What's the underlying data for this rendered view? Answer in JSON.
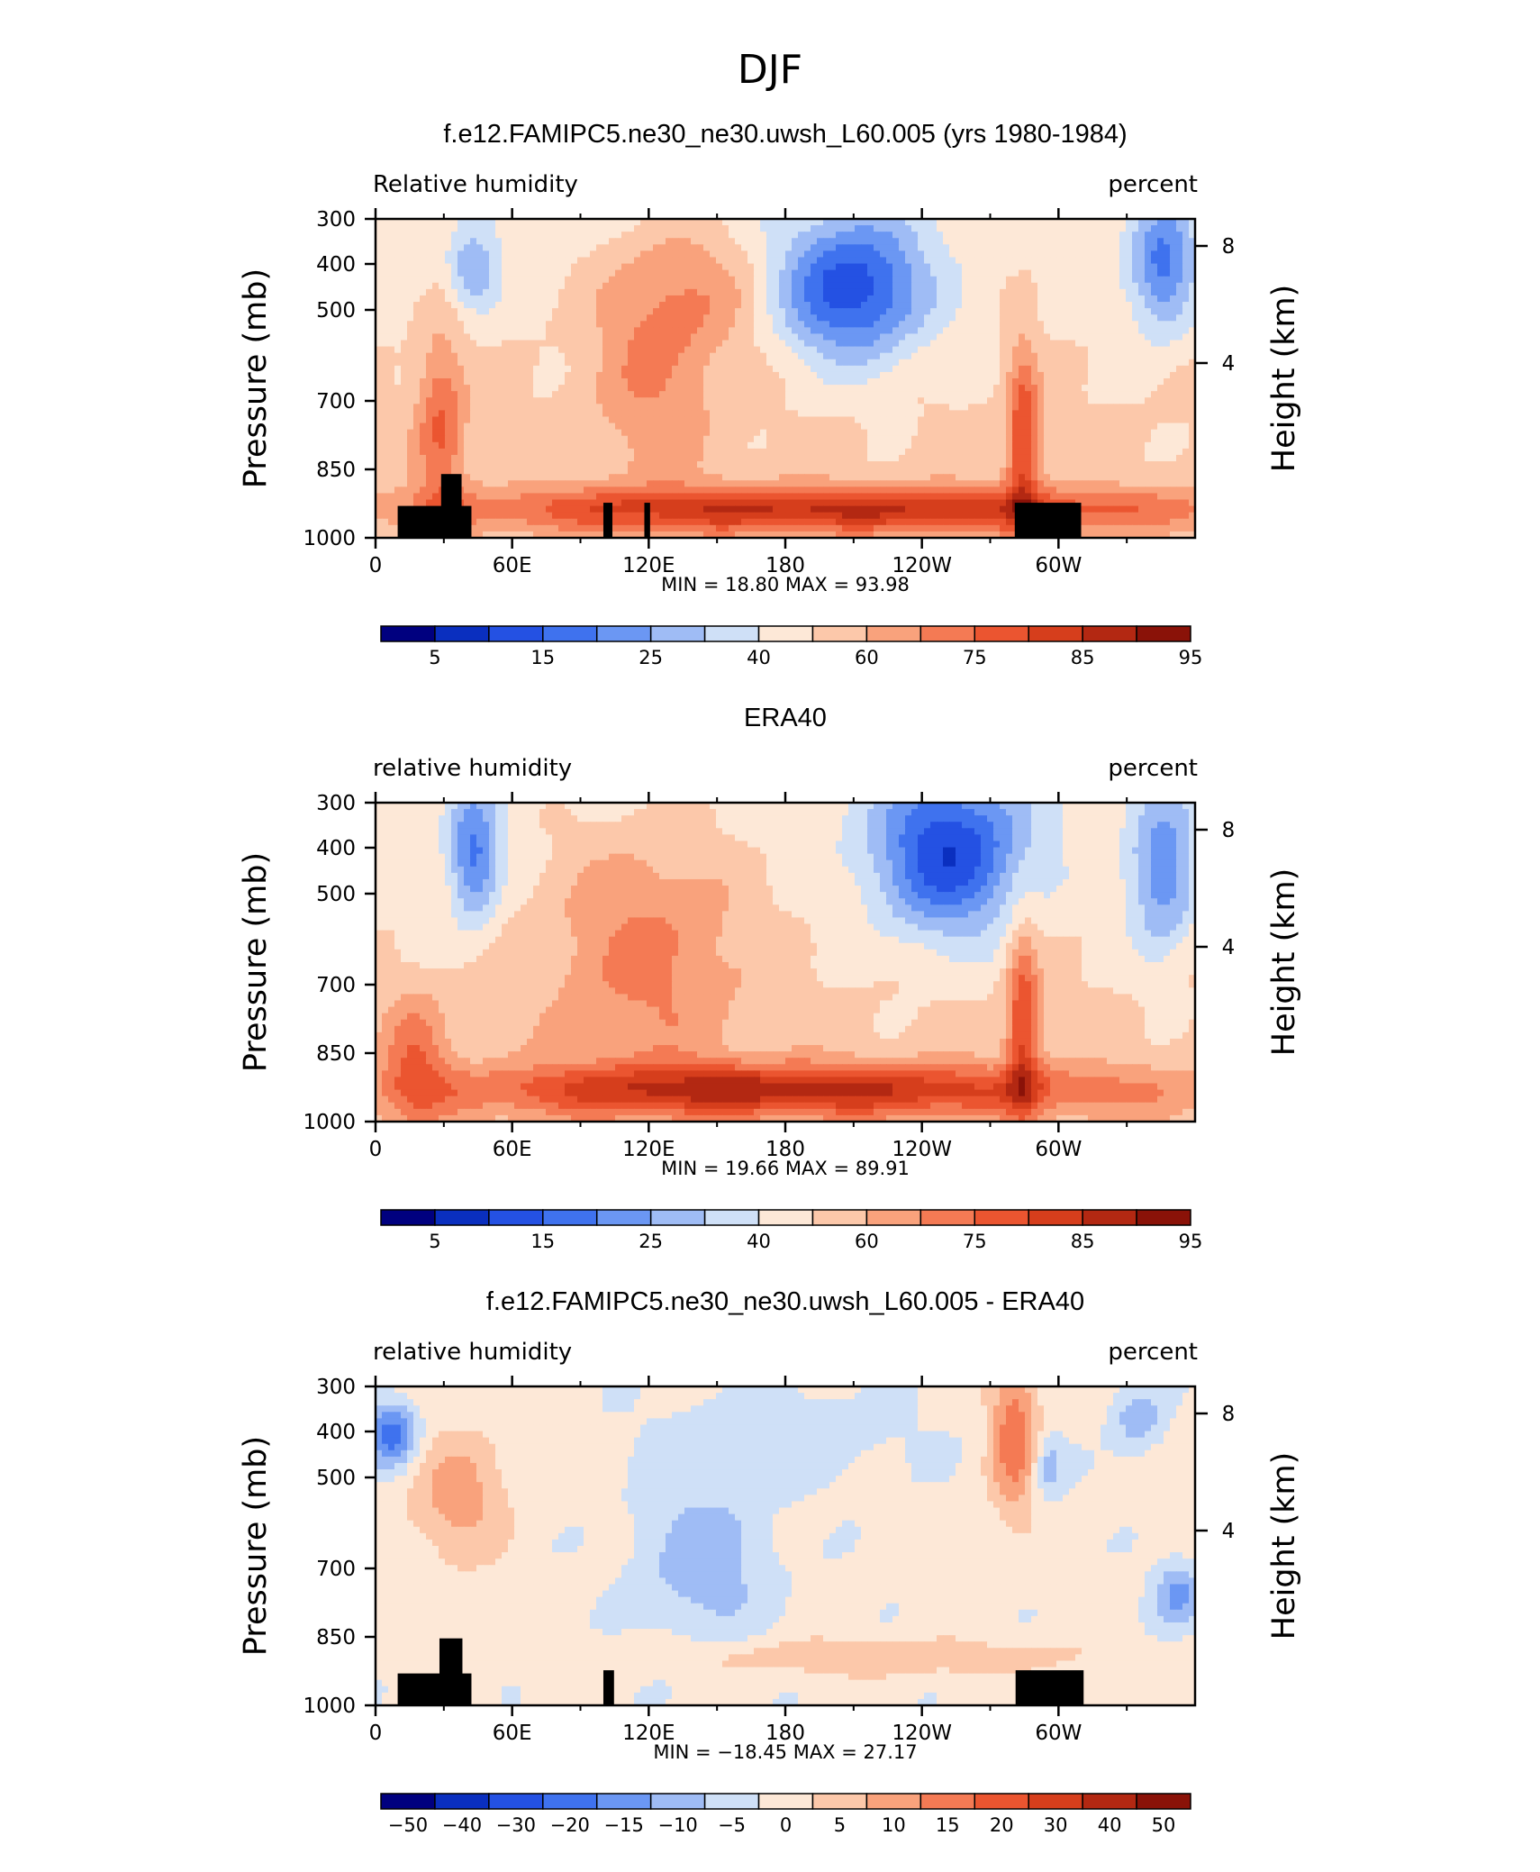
{
  "figure_title": "DJF",
  "chart_data": [
    {
      "type": "heatmap",
      "title": "f.e12.FAMIPC5.ne30_ne30.uwsh_L60.005 (yrs 1980-1984)",
      "left_label": "Relative humidity",
      "right_label": "percent",
      "ylabel": "Pressure (mb)",
      "y2label": "Height (km)",
      "x_ticks": [
        "0",
        "60E",
        "120E",
        "180",
        "120W",
        "60W"
      ],
      "y_ticks": [
        "300",
        "400",
        "500",
        "700",
        "850",
        "1000"
      ],
      "y2_ticks": [
        "8",
        "4"
      ],
      "stats_text": "MIN =   18.80   MAX =   93.98",
      "min": 18.8,
      "max": 93.98,
      "colorbar_labels": [
        "5",
        "15",
        "25",
        "40",
        "60",
        "75",
        "85",
        "95"
      ],
      "colorbar_colors": [
        "#00007f",
        "#0a2fbf",
        "#2451e3",
        "#3f72ee",
        "#6b97f3",
        "#9fbcf5",
        "#cfe0f7",
        "#fde8d7",
        "#fcc8aa",
        "#f9a27c",
        "#f47a54",
        "#eb5530",
        "#d63e1c",
        "#b32812",
        "#8a1208"
      ]
    },
    {
      "type": "heatmap",
      "title": "ERA40",
      "left_label": "relative humidity",
      "right_label": "percent",
      "ylabel": "Pressure (mb)",
      "y2label": "Height (km)",
      "x_ticks": [
        "0",
        "60E",
        "120E",
        "180",
        "120W",
        "60W"
      ],
      "y_ticks": [
        "300",
        "400",
        "500",
        "700",
        "850",
        "1000"
      ],
      "y2_ticks": [
        "8",
        "4"
      ],
      "stats_text": "MIN =   19.66   MAX =   89.91",
      "min": 19.66,
      "max": 89.91,
      "colorbar_labels": [
        "5",
        "15",
        "25",
        "40",
        "60",
        "75",
        "85",
        "95"
      ],
      "colorbar_colors": [
        "#00007f",
        "#0a2fbf",
        "#2451e3",
        "#3f72ee",
        "#6b97f3",
        "#9fbcf5",
        "#cfe0f7",
        "#fde8d7",
        "#fcc8aa",
        "#f9a27c",
        "#f47a54",
        "#eb5530",
        "#d63e1c",
        "#b32812",
        "#8a1208"
      ]
    },
    {
      "type": "heatmap",
      "title": "f.e12.FAMIPC5.ne30_ne30.uwsh_L60.005 - ERA40",
      "left_label": "relative humidity",
      "right_label": "percent",
      "ylabel": "Pressure (mb)",
      "y2label": "Height (km)",
      "x_ticks": [
        "0",
        "60E",
        "120E",
        "180",
        "120W",
        "60W"
      ],
      "y_ticks": [
        "300",
        "400",
        "500",
        "700",
        "850",
        "1000"
      ],
      "y2_ticks": [
        "8",
        "4"
      ],
      "stats_text": "MIN = −18.45   MAX =   27.17",
      "min": -18.45,
      "max": 27.17,
      "colorbar_labels": [
        "−50",
        "−40",
        "−30",
        "−20",
        "−15",
        "−10",
        "−5",
        "0",
        "5",
        "10",
        "15",
        "20",
        "30",
        "40",
        "50"
      ],
      "colorbar_colors": [
        "#00007f",
        "#0a2fbf",
        "#2451e3",
        "#3f72ee",
        "#6b97f3",
        "#9fbcf5",
        "#cfe0f7",
        "#fde8d7",
        "#fcc8aa",
        "#f9a27c",
        "#f47a54",
        "#eb5530",
        "#d63e1c",
        "#b32812",
        "#8a1208"
      ]
    }
  ]
}
